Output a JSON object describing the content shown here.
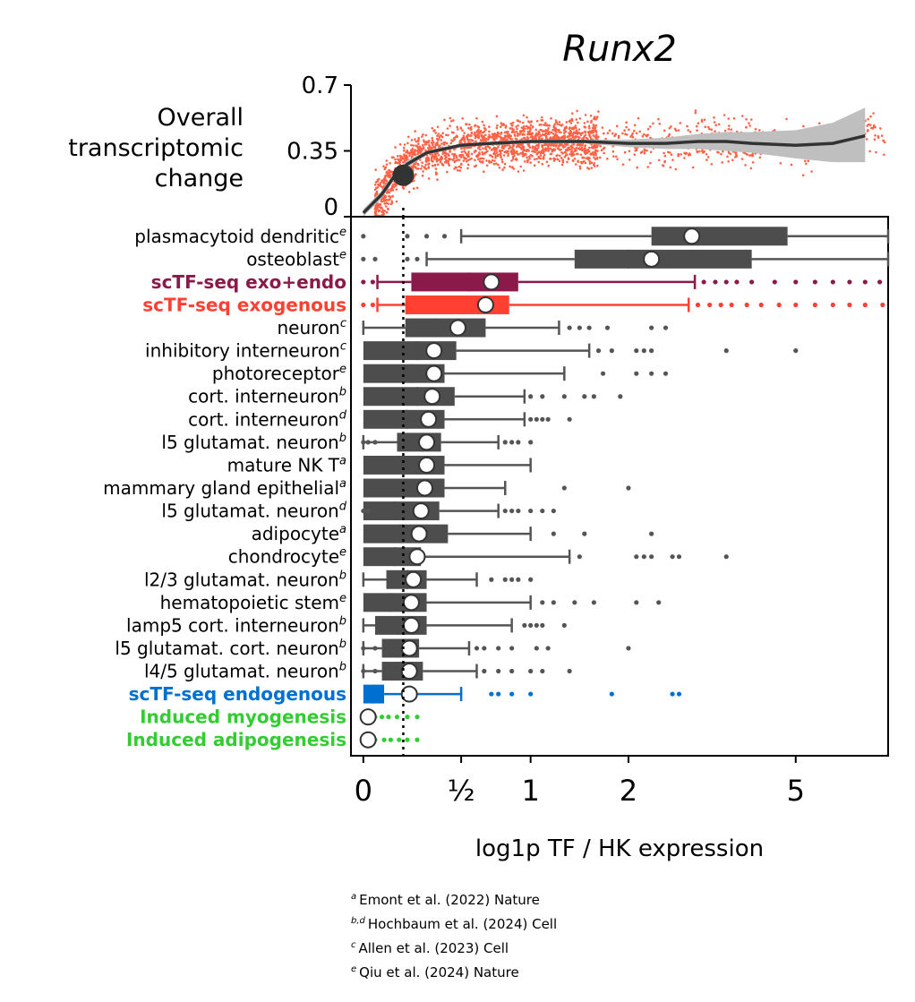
{
  "chart_data": [
    {
      "type": "scatter",
      "panel": "top",
      "title": "Runx2",
      "ylabel": "Overall transcriptomic change",
      "ylim": [
        0,
        0.7
      ],
      "yticks": [
        "0",
        "0.35",
        "0.7"
      ],
      "scatter_color": "#ff6347",
      "trend_color": "#333333",
      "band_color": "#bfbfbf",
      "trend": {
        "x": [
          0,
          0.08,
          0.14,
          0.2,
          0.3,
          0.5,
          0.7,
          1,
          1.5,
          2,
          2.5,
          3,
          3.5,
          4,
          5,
          6,
          7
        ],
        "y": [
          0.02,
          0.12,
          0.22,
          0.28,
          0.34,
          0.38,
          0.39,
          0.4,
          0.4,
          0.39,
          0.39,
          0.4,
          0.4,
          0.39,
          0.38,
          0.39,
          0.43
        ],
        "lo": [
          0.0,
          0.1,
          0.2,
          0.26,
          0.33,
          0.37,
          0.38,
          0.39,
          0.39,
          0.37,
          0.36,
          0.36,
          0.35,
          0.34,
          0.31,
          0.29,
          0.29
        ],
        "hi": [
          0.04,
          0.14,
          0.24,
          0.3,
          0.35,
          0.39,
          0.4,
          0.41,
          0.41,
          0.41,
          0.42,
          0.44,
          0.45,
          0.45,
          0.46,
          0.5,
          0.58
        ]
      },
      "highlight_point": {
        "x": 0.18,
        "y": 0.22
      }
    },
    {
      "type": "box",
      "panel": "bottom",
      "xlabel": "log1p TF / HK expression",
      "xticks": [
        {
          "value": 0,
          "label": "0"
        },
        {
          "value": 0.5,
          "label": "½"
        },
        {
          "value": 1,
          "label": "1"
        },
        {
          "value": 2,
          "label": "2"
        },
        {
          "value": 5,
          "label": "5"
        }
      ],
      "xlim": [
        -0.05,
        7.8
      ],
      "reference_line_x": 0.18,
      "scale": "log1p",
      "categories": [
        {
          "label": "plasmacytoid dendritic",
          "sup": "e",
          "color": "#4d4d4d",
          "q1": 2.3,
          "med": 3.0,
          "q3": 4.8,
          "wlo": 0.5,
          "whi": 7.8,
          "mean": 2.9,
          "out": [
            0.0,
            0.2,
            0.3,
            0.4
          ]
        },
        {
          "label": "osteoblast",
          "sup": "e",
          "color": "#4d4d4d",
          "q1": 1.4,
          "med": 2.0,
          "q3": 4.0,
          "wlo": 0.3,
          "whi": 7.8,
          "mean": 2.3,
          "out": [
            0.0,
            0.05,
            0.2,
            0.25
          ]
        },
        {
          "label": "scTF-seq exo+endo",
          "sup": "",
          "color": "#8b1a4a",
          "bold": true,
          "q1": 0.22,
          "med": 0.55,
          "q3": 0.9,
          "wlo": 0.06,
          "whi": 2.95,
          "mean": 0.7,
          "out": [
            0.0,
            0.04,
            3.1,
            3.3,
            3.5,
            3.7,
            4.0,
            4.5,
            5.0,
            5.5,
            6.0,
            6.5,
            7.0,
            7.5
          ]
        },
        {
          "label": "scTF-seq exogenous",
          "sup": "",
          "color": "#ff4033",
          "bold": true,
          "q1": 0.19,
          "med": 0.5,
          "q3": 0.83,
          "wlo": 0.06,
          "whi": 2.85,
          "mean": 0.66,
          "out": [
            0.0,
            0.04,
            3.0,
            3.2,
            3.4,
            3.6,
            3.9,
            4.2,
            4.6,
            5.0,
            5.5,
            6.0,
            6.5,
            7.0,
            7.6
          ]
        },
        {
          "label": "neuron",
          "sup": "c",
          "color": "#4d4d4d",
          "q1": 0.19,
          "med": 0.35,
          "q3": 0.66,
          "wlo": 0.0,
          "whi": 1.25,
          "mean": 0.48,
          "out": [
            1.35,
            1.45,
            1.55,
            1.75,
            2.3,
            2.5
          ]
        },
        {
          "label": "inhibitory interneuron",
          "sup": "c",
          "color": "#4d4d4d",
          "q1": 0.0,
          "med": 0.25,
          "q3": 0.47,
          "wlo": 0.0,
          "whi": 1.55,
          "mean": 0.34,
          "out": [
            1.65,
            1.8,
            2.1,
            2.2,
            2.3,
            3.5,
            5.0
          ]
        },
        {
          "label": "photoreceptor",
          "sup": "e",
          "color": "#4d4d4d",
          "q1": 0.0,
          "med": 0.22,
          "q3": 0.4,
          "wlo": 0.0,
          "whi": 1.3,
          "mean": 0.34,
          "out": [
            1.7,
            2.1,
            2.3,
            2.5
          ]
        },
        {
          "label": "cort. interneuron",
          "sup": "b",
          "color": "#4d4d4d",
          "q1": 0.0,
          "med": 0.25,
          "q3": 0.46,
          "wlo": 0.0,
          "whi": 0.95,
          "mean": 0.33,
          "out": [
            1.0,
            1.1,
            1.3,
            1.5,
            1.6,
            1.9
          ]
        },
        {
          "label": "cort. interneuron",
          "sup": "d",
          "color": "#4d4d4d",
          "q1": 0.0,
          "med": 0.2,
          "q3": 0.4,
          "wlo": 0.0,
          "whi": 0.95,
          "mean": 0.31,
          "out": [
            1.0,
            1.05,
            1.1,
            1.15,
            1.35
          ]
        },
        {
          "label": "l5 glutamat. neuron",
          "sup": "b",
          "color": "#4d4d4d",
          "q1": 0.15,
          "med": 0.28,
          "q3": 0.38,
          "wlo": 0.0,
          "whi": 0.75,
          "mean": 0.3,
          "out": [
            0.0,
            0.02,
            0.05,
            0.8,
            0.85,
            0.9,
            1.0
          ]
        },
        {
          "label": "mature NK T",
          "sup": "a",
          "color": "#4d4d4d",
          "q1": 0.0,
          "med": 0.25,
          "q3": 0.4,
          "wlo": 0.0,
          "whi": 1.0,
          "mean": 0.3,
          "out": []
        },
        {
          "label": "mammary gland epithelial",
          "sup": "a",
          "color": "#4d4d4d",
          "q1": 0.0,
          "med": 0.2,
          "q3": 0.4,
          "wlo": 0.0,
          "whi": 0.8,
          "mean": 0.29,
          "out": [
            1.3,
            2.0
          ]
        },
        {
          "label": "l5 glutamat. neuron",
          "sup": "d",
          "color": "#4d4d4d",
          "q1": 0.0,
          "med": 0.14,
          "q3": 0.37,
          "wlo": 0.0,
          "whi": 0.75,
          "mean": 0.27,
          "out": [
            0.0,
            0.02,
            0.8,
            0.85,
            0.9,
            1.0,
            1.1,
            1.2
          ]
        },
        {
          "label": "adipocyte",
          "sup": "a",
          "color": "#4d4d4d",
          "q1": 0.0,
          "med": 0.17,
          "q3": 0.42,
          "wlo": 0.0,
          "whi": 1.0,
          "mean": 0.26,
          "out": [
            1.2,
            1.5,
            2.3
          ]
        },
        {
          "label": "chondrocyte",
          "sup": "e",
          "color": "#4d4d4d",
          "q1": 0.0,
          "med": 0.14,
          "q3": 0.27,
          "wlo": 0.0,
          "whi": 1.35,
          "mean": 0.25,
          "out": [
            1.45,
            2.1,
            2.2,
            2.3,
            2.6,
            2.7,
            3.5
          ]
        },
        {
          "label": "l2/3 glutamat. neuron",
          "sup": "b",
          "color": "#4d4d4d",
          "q1": 0.1,
          "med": 0.2,
          "q3": 0.3,
          "wlo": 0.0,
          "whi": 0.6,
          "mean": 0.23,
          "out": [
            0.7,
            0.8,
            0.85,
            0.9,
            1.0
          ]
        },
        {
          "label": "hematopoietic stem",
          "sup": "e",
          "color": "#4d4d4d",
          "q1": 0.0,
          "med": 0.12,
          "q3": 0.3,
          "wlo": 0.0,
          "whi": 1.0,
          "mean": 0.22,
          "out": [
            1.1,
            1.2,
            1.4,
            1.6,
            2.1,
            2.4
          ]
        },
        {
          "label": "lamp5 cort. interneuron",
          "sup": "b",
          "color": "#4d4d4d",
          "q1": 0.05,
          "med": 0.15,
          "q3": 0.3,
          "wlo": 0.0,
          "whi": 0.85,
          "mean": 0.22,
          "out": [
            0.95,
            1.0,
            1.05,
            1.1,
            1.3
          ]
        },
        {
          "label": "l5 glutamat. cort. neuron",
          "sup": "b",
          "color": "#4d4d4d",
          "q1": 0.08,
          "med": 0.15,
          "q3": 0.26,
          "wlo": 0.0,
          "whi": 0.55,
          "mean": 0.21,
          "out": [
            0.0,
            0.05,
            0.6,
            0.65,
            0.75,
            0.85,
            1.05,
            1.15,
            2.0
          ]
        },
        {
          "label": "l4/5 glutamat. neuron",
          "sup": "b",
          "color": "#4d4d4d",
          "q1": 0.08,
          "med": 0.15,
          "q3": 0.28,
          "wlo": 0.0,
          "whi": 0.6,
          "mean": 0.21,
          "out": [
            0.0,
            0.05,
            0.65,
            0.75,
            0.85,
            1.0,
            1.1,
            1.35
          ]
        },
        {
          "label": "scTF-seq endogenous",
          "sup": "",
          "color": "#0070d0",
          "bold": true,
          "q1": 0.0,
          "med": 0.04,
          "q3": 0.09,
          "wlo": 0.0,
          "whi": 0.5,
          "mean": 0.21,
          "out": [
            0.7,
            0.75,
            0.85,
            1.0,
            1.8,
            2.6,
            2.7
          ]
        },
        {
          "label": "Induced myogenesis",
          "sup": "",
          "color": "#33cc33",
          "bold": true,
          "q1": 0.0,
          "med": 0.0,
          "q3": 0.0,
          "wlo": 0.0,
          "whi": 0.0,
          "mean": 0.02,
          "out": [
            0.05,
            0.08,
            0.11,
            0.15,
            0.2,
            0.25
          ]
        },
        {
          "label": "Induced adipogenesis",
          "sup": "",
          "color": "#33cc33",
          "bold": true,
          "q1": 0.0,
          "med": 0.0,
          "q3": 0.0,
          "wlo": 0.0,
          "whi": 0.0,
          "mean": 0.02,
          "out": [
            0.05,
            0.09,
            0.12,
            0.16,
            0.2,
            0.25
          ]
        }
      ]
    }
  ],
  "footnotes": [
    {
      "sup": "a",
      "text": "Emont et al. (2022) Nature"
    },
    {
      "sup": "b,d",
      "text": "Hochbaum et al. (2024) Cell"
    },
    {
      "sup": "c",
      "text": "Allen et al. (2023) Cell"
    },
    {
      "sup": "e",
      "text": "Qiu et al. (2024) Nature"
    }
  ]
}
